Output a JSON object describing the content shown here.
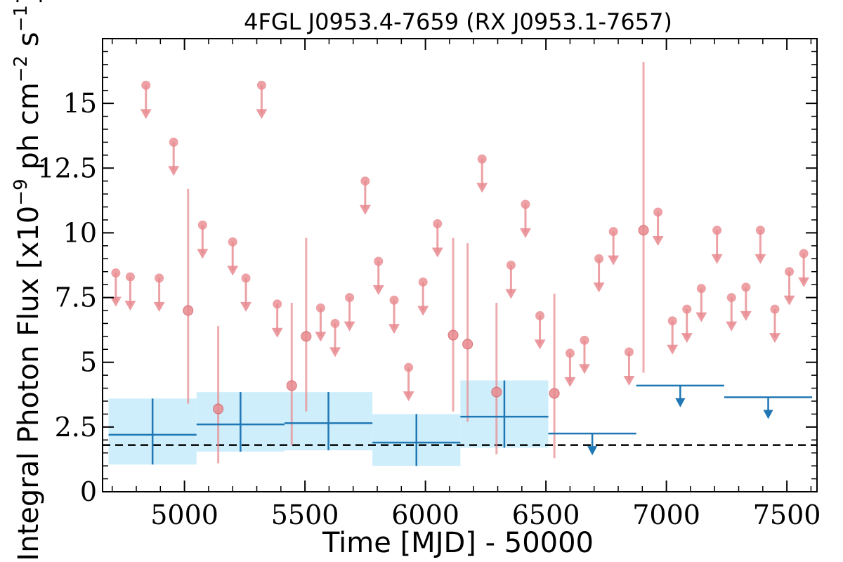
{
  "chart_data": {
    "type": "scatter",
    "title": "4FGL J0953.4-7659 (RX J0953.1-7657)",
    "xlabel": "Time [MJD] - 50000",
    "ylabel_main": "Integral Photon Flux [x10",
    "ylabel_exp": "−9",
    "ylabel_mid": " ph cm",
    "ylabel_exp2": "−2",
    "ylabel_end": " s",
    "ylabel_exp3": "−1",
    "ylabel_close": "]",
    "xlim": [
      4660,
      7625
    ],
    "ylim": [
      0,
      17.5
    ],
    "xticks": [
      5000,
      5500,
      6000,
      6500,
      7000,
      7500
    ],
    "xtick_labels": [
      "5000",
      "5500",
      "6000",
      "6500",
      "7000",
      "7500"
    ],
    "yticks": [
      0,
      2.5,
      5,
      7.5,
      10,
      12.5,
      15
    ],
    "ytick_labels": [
      "0",
      "2.5",
      "5",
      "7.5",
      "10",
      "12.5",
      "15"
    ],
    "reference_line": 1.8,
    "colors": {
      "short_bins": "#e88a8f",
      "long_bins": "#1f77b4",
      "band": "#cfeefb"
    },
    "short_bins": {
      "detections": [
        {
          "x": 5015,
          "y": 7.0,
          "lo": 3.4,
          "hi": 11.7
        },
        {
          "x": 5140,
          "y": 3.2,
          "lo": 1.1,
          "hi": 6.4
        },
        {
          "x": 5445,
          "y": 4.1,
          "lo": 1.8,
          "hi": 7.3
        },
        {
          "x": 5505,
          "y": 6.0,
          "lo": 3.1,
          "hi": 9.8
        },
        {
          "x": 6115,
          "y": 6.05,
          "lo": 3.1,
          "hi": 9.8
        },
        {
          "x": 6175,
          "y": 5.7,
          "lo": 2.7,
          "hi": 9.6
        },
        {
          "x": 6295,
          "y": 3.85,
          "lo": 1.45,
          "hi": 7.3
        },
        {
          "x": 6535,
          "y": 3.8,
          "lo": 1.3,
          "hi": 7.65
        },
        {
          "x": 6905,
          "y": 10.1,
          "lo": 4.6,
          "hi": 16.6
        }
      ],
      "upper_limits": [
        {
          "x": 4715,
          "y": 8.45
        },
        {
          "x": 4775,
          "y": 8.3
        },
        {
          "x": 4840,
          "y": 15.7
        },
        {
          "x": 4895,
          "y": 8.25
        },
        {
          "x": 4955,
          "y": 13.5
        },
        {
          "x": 5075,
          "y": 10.3
        },
        {
          "x": 5200,
          "y": 9.65
        },
        {
          "x": 5255,
          "y": 8.25
        },
        {
          "x": 5320,
          "y": 15.7
        },
        {
          "x": 5385,
          "y": 7.25
        },
        {
          "x": 5565,
          "y": 7.1
        },
        {
          "x": 5625,
          "y": 6.5
        },
        {
          "x": 5685,
          "y": 7.5
        },
        {
          "x": 5750,
          "y": 12.0
        },
        {
          "x": 5805,
          "y": 8.9
        },
        {
          "x": 5870,
          "y": 7.4
        },
        {
          "x": 5930,
          "y": 4.8
        },
        {
          "x": 5990,
          "y": 8.1
        },
        {
          "x": 6050,
          "y": 10.35
        },
        {
          "x": 6235,
          "y": 12.85
        },
        {
          "x": 6355,
          "y": 8.75
        },
        {
          "x": 6415,
          "y": 11.1
        },
        {
          "x": 6475,
          "y": 6.8
        },
        {
          "x": 6600,
          "y": 5.35
        },
        {
          "x": 6660,
          "y": 5.85
        },
        {
          "x": 6720,
          "y": 9.0
        },
        {
          "x": 6780,
          "y": 10.05
        },
        {
          "x": 6845,
          "y": 5.4
        },
        {
          "x": 6965,
          "y": 10.8
        },
        {
          "x": 7025,
          "y": 6.6
        },
        {
          "x": 7085,
          "y": 7.05
        },
        {
          "x": 7145,
          "y": 7.85
        },
        {
          "x": 7210,
          "y": 10.1
        },
        {
          "x": 7270,
          "y": 7.5
        },
        {
          "x": 7330,
          "y": 7.9
        },
        {
          "x": 7390,
          "y": 10.1
        },
        {
          "x": 7450,
          "y": 7.05
        },
        {
          "x": 7510,
          "y": 8.5
        },
        {
          "x": 7570,
          "y": 9.2
        }
      ]
    },
    "long_bins": {
      "detections": [
        {
          "x0": 4685,
          "x1": 5050,
          "y": 2.2,
          "lo": 1.05,
          "hi": 3.6
        },
        {
          "x0": 5050,
          "x1": 5415,
          "y": 2.6,
          "lo": 1.55,
          "hi": 3.85
        },
        {
          "x0": 5415,
          "x1": 5780,
          "y": 2.65,
          "lo": 1.6,
          "hi": 3.85
        },
        {
          "x0": 5780,
          "x1": 6145,
          "y": 1.9,
          "lo": 1.0,
          "hi": 3.0
        },
        {
          "x0": 6145,
          "x1": 6510,
          "y": 2.9,
          "lo": 1.7,
          "hi": 4.3
        }
      ],
      "upper_limits": [
        {
          "x0": 6510,
          "x1": 6875,
          "y": 2.25
        },
        {
          "x0": 6875,
          "x1": 7240,
          "y": 4.1
        },
        {
          "x0": 7240,
          "x1": 7605,
          "y": 3.65
        }
      ]
    }
  }
}
